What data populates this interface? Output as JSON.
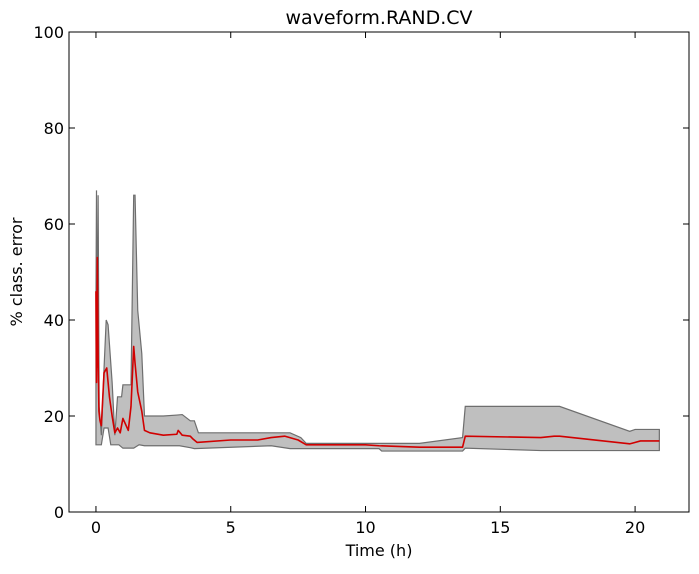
{
  "chart_data": {
    "type": "area",
    "title": "waveform.RAND.CV",
    "xlabel": "Time (h)",
    "ylabel": "% class. error",
    "xlim": [
      -1,
      22
    ],
    "ylim": [
      0,
      100
    ],
    "xticks": [
      0,
      5,
      10,
      15,
      20
    ],
    "yticks": [
      0,
      20,
      40,
      60,
      80,
      100
    ],
    "grid": false,
    "legend": "none",
    "band": {
      "fill_color": "#bfbfbf",
      "edge_color": "#6e6e6e",
      "upper": [
        [
          0.0,
          44
        ],
        [
          0.02,
          67
        ],
        [
          0.05,
          30
        ],
        [
          0.08,
          66
        ],
        [
          0.12,
          22
        ],
        [
          0.2,
          16
        ],
        [
          0.3,
          30
        ],
        [
          0.38,
          40
        ],
        [
          0.45,
          39
        ],
        [
          0.6,
          27
        ],
        [
          0.7,
          16
        ],
        [
          0.8,
          24
        ],
        [
          0.95,
          24
        ],
        [
          1.0,
          26.5
        ],
        [
          1.3,
          26.5
        ],
        [
          1.4,
          66
        ],
        [
          1.45,
          66
        ],
        [
          1.55,
          42
        ],
        [
          1.7,
          33
        ],
        [
          1.8,
          20
        ],
        [
          2.5,
          20
        ],
        [
          3.0,
          20.2
        ],
        [
          3.2,
          20.3
        ],
        [
          3.5,
          19
        ],
        [
          3.65,
          19
        ],
        [
          3.8,
          16.5
        ],
        [
          7.2,
          16.5
        ],
        [
          7.6,
          15.5
        ],
        [
          7.8,
          14.3
        ],
        [
          12.0,
          14.3
        ],
        [
          13.6,
          15.5
        ],
        [
          13.7,
          22
        ],
        [
          17.2,
          22
        ],
        [
          19.8,
          16.8
        ],
        [
          20.0,
          17.2
        ],
        [
          20.9,
          17.2
        ]
      ],
      "lower": [
        [
          0.0,
          14
        ],
        [
          0.1,
          14
        ],
        [
          0.2,
          14
        ],
        [
          0.3,
          17.5
        ],
        [
          0.45,
          17.5
        ],
        [
          0.55,
          14
        ],
        [
          0.85,
          14
        ],
        [
          1.0,
          13.3
        ],
        [
          1.4,
          13.3
        ],
        [
          1.6,
          14
        ],
        [
          1.8,
          13.8
        ],
        [
          3.1,
          13.8
        ],
        [
          3.5,
          13.4
        ],
        [
          3.65,
          13.2
        ],
        [
          6.5,
          13.8
        ],
        [
          7.2,
          13.2
        ],
        [
          10.5,
          13.2
        ],
        [
          10.6,
          12.7
        ],
        [
          13.6,
          12.7
        ],
        [
          13.7,
          13.3
        ],
        [
          16.5,
          12.8
        ],
        [
          20.9,
          12.8
        ]
      ]
    },
    "series": [
      {
        "color": "#d10000",
        "x": [
          0.0,
          0.02,
          0.05,
          0.08,
          0.11,
          0.15,
          0.2,
          0.3,
          0.4,
          0.5,
          0.6,
          0.7,
          0.8,
          0.9,
          1.0,
          1.2,
          1.3,
          1.4,
          1.45,
          1.55,
          1.7,
          1.8,
          2.0,
          2.5,
          3.0,
          3.05,
          3.2,
          3.5,
          3.6,
          3.75,
          5.0,
          6.0,
          6.5,
          7.0,
          7.5,
          7.8,
          10.0,
          10.5,
          12.0,
          13.6,
          13.7,
          16.5,
          17.0,
          17.2,
          19.8,
          20.2,
          20.9
        ],
        "y": [
          46,
          27,
          53,
          32,
          21,
          19,
          18,
          29,
          30,
          24,
          20,
          16.5,
          17.5,
          16.5,
          19.5,
          17,
          22,
          34.5,
          31,
          25,
          21,
          17,
          16.5,
          16,
          16.2,
          17,
          16,
          15.8,
          15.2,
          14.5,
          15,
          15,
          15.5,
          15.8,
          15,
          14,
          14,
          13.8,
          13.5,
          13.5,
          15.8,
          15.5,
          15.8,
          15.8,
          14.2,
          14.8,
          14.8
        ]
      }
    ]
  }
}
